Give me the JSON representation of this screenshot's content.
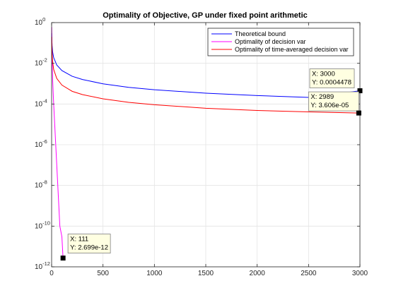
{
  "chart_data": {
    "type": "line",
    "title": "Optimality of Objective, GP under fixed point arithmetic",
    "xlabel": "",
    "ylabel": "",
    "xlim": [
      0,
      3000
    ],
    "ylim": [
      1e-12,
      1
    ],
    "yscale": "log",
    "grid": true,
    "legend_position": "top-right",
    "x_ticks": [
      "0",
      "500",
      "1000",
      "1500",
      "2000",
      "2500",
      "3000"
    ],
    "y_ticks": [
      {
        "base": "10",
        "exp": "0"
      },
      {
        "base": "10",
        "exp": "-2"
      },
      {
        "base": "10",
        "exp": "-4"
      },
      {
        "base": "10",
        "exp": "-6"
      },
      {
        "base": "10",
        "exp": "-8"
      },
      {
        "base": "10",
        "exp": "-10"
      },
      {
        "base": "10",
        "exp": "-12"
      }
    ],
    "series": [
      {
        "name": "Theoretical bound",
        "color": "#0000ff",
        "x": [
          1,
          2,
          3,
          5,
          10,
          20,
          50,
          100,
          200,
          300,
          500,
          750,
          1000,
          1500,
          2000,
          2500,
          3000
        ],
        "y": [
          0.3,
          0.18,
          0.12,
          0.072,
          0.036,
          0.019,
          0.0082,
          0.0044,
          0.0023,
          0.0016,
          0.00098,
          0.00066,
          0.0005,
          0.00034,
          0.00026,
          0.00021,
          0.0004478
        ]
      },
      {
        "name": "Optimality of decision var",
        "color": "#ff00ff",
        "x": [
          1,
          5,
          10,
          20,
          40,
          60,
          80,
          100,
          111
        ],
        "y": [
          0.6,
          0.02,
          0.0015,
          0.0001,
          1e-06,
          1e-08,
          1e-10,
          3e-11,
          2.699e-12
        ]
      },
      {
        "name": "Optimality of time-averaged decision var",
        "color": "#ff0000",
        "x": [
          1,
          2,
          3,
          5,
          10,
          20,
          50,
          100,
          200,
          300,
          500,
          750,
          1000,
          1500,
          2000,
          2500,
          2989
        ],
        "y": [
          0.2,
          0.1,
          0.06,
          0.03,
          0.012,
          0.005,
          0.0018,
          0.00085,
          0.00042,
          0.00029,
          0.00018,
          0.00012,
          9.2e-05,
          6.2e-05,
          4.8e-05,
          4.1e-05,
          3.606e-05
        ]
      }
    ],
    "datatips": [
      {
        "x": 3000,
        "y": 0.0004478,
        "x_text": "X: 3000",
        "y_text": "Y: 0.0004478",
        "series": "Theoretical bound"
      },
      {
        "x": 2989,
        "y": 3.606e-05,
        "x_text": "X: 2989",
        "y_text": "Y: 3.606e-05",
        "series": "Optimality of time-averaged decision var"
      },
      {
        "x": 111,
        "y": 2.699e-12,
        "x_text": "X: 111",
        "y_text": "Y: 2.699e-12",
        "series": "Optimality of decision var"
      }
    ]
  }
}
